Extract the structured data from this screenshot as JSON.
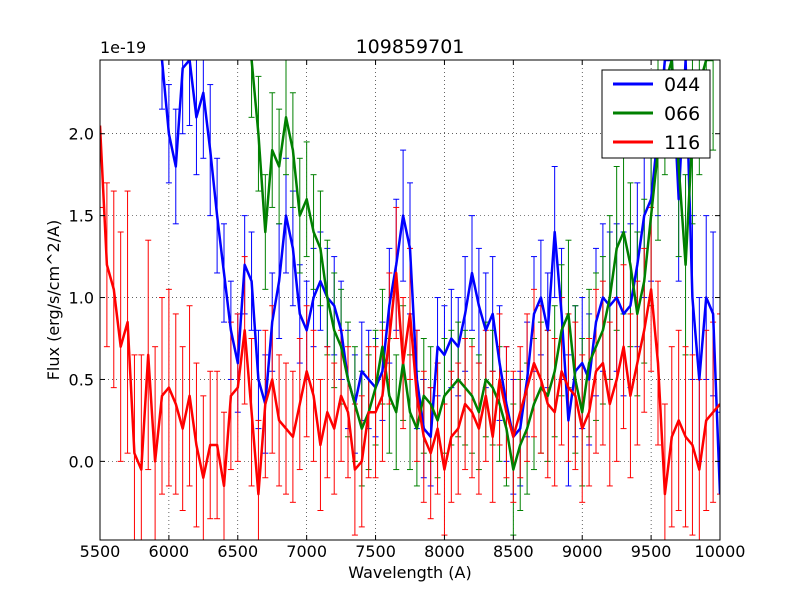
{
  "chart_data": {
    "type": "line",
    "title": "109859701",
    "xlabel": "Wavelength (A)",
    "ylabel": "Flux (erg/s/cm^2/A)",
    "offset_label": "1e-19",
    "xlim": [
      5500,
      10000
    ],
    "ylim": [
      -0.48,
      2.45
    ],
    "xticks": [
      5500,
      6000,
      6500,
      7000,
      7500,
      8000,
      8500,
      9000,
      9500,
      10000
    ],
    "xtick_labels": [
      "5500",
      "6000",
      "6500",
      "7000",
      "7500",
      "8000",
      "8500",
      "9000",
      "9500",
      "10000"
    ],
    "yticks": [
      0.0,
      0.5,
      1.0,
      1.5,
      2.0
    ],
    "ytick_labels": [
      "0.0",
      "0.5",
      "1.0",
      "1.5",
      "2.0"
    ],
    "grid": true,
    "legend_position": "top-right",
    "series": [
      {
        "name": "044",
        "color": "#0000ff",
        "x": [
          5950,
          6000,
          6050,
          6100,
          6150,
          6200,
          6250,
          6300,
          6350,
          6400,
          6450,
          6500,
          6550,
          6600,
          6650,
          6700,
          6750,
          6800,
          6850,
          6900,
          6950,
          7000,
          7050,
          7100,
          7150,
          7200,
          7250,
          7300,
          7350,
          7400,
          7450,
          7500,
          7550,
          7600,
          7650,
          7700,
          7750,
          7800,
          7850,
          7900,
          7950,
          8000,
          8050,
          8100,
          8150,
          8200,
          8250,
          8300,
          8350,
          8400,
          8450,
          8500,
          8550,
          8600,
          8650,
          8700,
          8750,
          8800,
          8850,
          8900,
          8950,
          9000,
          9050,
          9100,
          9150,
          9200,
          9250,
          9300,
          9350,
          9400,
          9450,
          9500,
          9550,
          9600,
          9650,
          9700,
          9750,
          9800,
          9850,
          9900,
          9950,
          10000
        ],
        "values": [
          2.45,
          2.0,
          1.8,
          2.4,
          2.45,
          2.1,
          2.25,
          1.9,
          1.5,
          1.15,
          0.8,
          0.6,
          1.2,
          1.1,
          0.5,
          0.35,
          0.85,
          1.1,
          1.5,
          1.3,
          0.9,
          0.8,
          1.0,
          1.1,
          1.0,
          0.95,
          0.8,
          0.5,
          0.35,
          0.55,
          0.5,
          0.45,
          0.55,
          0.95,
          1.2,
          1.5,
          1.3,
          0.5,
          0.2,
          0.15,
          0.7,
          0.65,
          0.75,
          0.7,
          0.9,
          1.15,
          0.95,
          0.8,
          0.9,
          0.6,
          0.35,
          0.15,
          0.2,
          0.5,
          0.9,
          1.0,
          0.8,
          1.4,
          0.9,
          0.25,
          0.55,
          0.6,
          0.5,
          0.85,
          1.0,
          0.95,
          1.0,
          0.9,
          0.95,
          1.2,
          1.5,
          1.6,
          2.0,
          2.45,
          2.45,
          1.6,
          2.45,
          1.0,
          0.5,
          1.0,
          0.9,
          -0.2
        ],
        "errors": [
          0.3,
          0.3,
          0.35,
          0.4,
          0.4,
          0.35,
          0.4,
          0.4,
          0.35,
          0.3,
          0.3,
          0.3,
          0.3,
          0.3,
          0.3,
          0.3,
          0.3,
          0.35,
          0.35,
          0.35,
          0.3,
          0.3,
          0.3,
          0.3,
          0.3,
          0.3,
          0.3,
          0.3,
          0.3,
          0.3,
          0.3,
          0.3,
          0.3,
          0.35,
          0.4,
          0.4,
          0.4,
          0.3,
          0.3,
          0.3,
          0.3,
          0.3,
          0.3,
          0.3,
          0.35,
          0.35,
          0.35,
          0.35,
          0.35,
          0.35,
          0.35,
          0.35,
          0.35,
          0.35,
          0.35,
          0.35,
          0.35,
          0.4,
          0.4,
          0.4,
          0.4,
          0.4,
          0.4,
          0.45,
          0.45,
          0.45,
          0.45,
          0.5,
          0.5,
          0.5,
          0.5,
          0.5,
          0.5,
          0.5,
          0.5,
          0.5,
          0.5,
          0.5,
          0.5,
          0.5,
          0.5,
          0.5
        ]
      },
      {
        "name": "066",
        "color": "#008000",
        "x": [
          6600,
          6650,
          6700,
          6750,
          6800,
          6850,
          6900,
          6950,
          7000,
          7050,
          7100,
          7150,
          7200,
          7250,
          7300,
          7350,
          7400,
          7450,
          7500,
          7550,
          7600,
          7650,
          7700,
          7750,
          7800,
          7850,
          7900,
          7950,
          8000,
          8050,
          8100,
          8150,
          8200,
          8250,
          8300,
          8350,
          8400,
          8450,
          8500,
          8550,
          8600,
          8650,
          8700,
          8750,
          8800,
          8850,
          8900,
          8950,
          9000,
          9050,
          9100,
          9150,
          9200,
          9250,
          9300,
          9350,
          9400,
          9450,
          9500,
          9550,
          9600,
          9650,
          9700,
          9750,
          9800,
          9850,
          9900,
          9950
        ],
        "values": [
          2.45,
          2.0,
          1.4,
          1.9,
          1.8,
          2.1,
          1.9,
          1.5,
          1.6,
          1.4,
          1.3,
          1.0,
          0.8,
          0.7,
          0.5,
          0.35,
          0.2,
          0.3,
          0.45,
          0.7,
          0.4,
          0.3,
          0.6,
          0.3,
          0.2,
          0.4,
          0.35,
          0.25,
          0.4,
          0.45,
          0.5,
          0.45,
          0.4,
          0.3,
          0.5,
          0.45,
          0.35,
          0.2,
          -0.05,
          0.1,
          0.2,
          0.35,
          0.45,
          0.4,
          0.55,
          0.8,
          0.9,
          0.5,
          0.3,
          0.6,
          0.7,
          0.8,
          1.0,
          1.3,
          1.4,
          1.2,
          0.9,
          1.1,
          1.5,
          1.9,
          2.3,
          2.45,
          1.8,
          1.2,
          2.0,
          2.3,
          2.45,
          2.45
        ],
        "errors": [
          0.35,
          0.35,
          0.35,
          0.35,
          0.35,
          0.35,
          0.35,
          0.35,
          0.35,
          0.35,
          0.35,
          0.35,
          0.35,
          0.35,
          0.35,
          0.35,
          0.35,
          0.35,
          0.35,
          0.35,
          0.35,
          0.35,
          0.35,
          0.35,
          0.35,
          0.35,
          0.35,
          0.35,
          0.35,
          0.35,
          0.35,
          0.35,
          0.35,
          0.35,
          0.35,
          0.35,
          0.35,
          0.35,
          0.4,
          0.4,
          0.4,
          0.4,
          0.4,
          0.4,
          0.4,
          0.4,
          0.45,
          0.45,
          0.45,
          0.45,
          0.45,
          0.45,
          0.5,
          0.5,
          0.5,
          0.5,
          0.5,
          0.5,
          0.55,
          0.55,
          0.55,
          0.55,
          0.55,
          0.55,
          0.55,
          0.55,
          0.55,
          0.55
        ]
      },
      {
        "name": "116",
        "color": "#ff0000",
        "x": [
          5500,
          5550,
          5600,
          5650,
          5700,
          5750,
          5800,
          5850,
          5900,
          5950,
          6000,
          6050,
          6100,
          6150,
          6200,
          6250,
          6300,
          6350,
          6400,
          6450,
          6500,
          6550,
          6600,
          6650,
          6700,
          6750,
          6800,
          6850,
          6900,
          6950,
          7000,
          7050,
          7100,
          7150,
          7200,
          7250,
          7300,
          7350,
          7400,
          7450,
          7500,
          7550,
          7600,
          7650,
          7700,
          7750,
          7800,
          7850,
          7900,
          7950,
          8000,
          8050,
          8100,
          8150,
          8200,
          8250,
          8300,
          8350,
          8400,
          8450,
          8500,
          8550,
          8600,
          8650,
          8700,
          8750,
          8800,
          8850,
          8900,
          8950,
          9000,
          9050,
          9100,
          9150,
          9200,
          9250,
          9300,
          9350,
          9400,
          9450,
          9500,
          9550,
          9600,
          9650,
          9700,
          9750,
          9800,
          9850,
          9900,
          9950,
          10000
        ],
        "values": [
          2.05,
          1.2,
          1.05,
          0.7,
          0.85,
          0.05,
          -0.05,
          0.65,
          0.0,
          0.4,
          0.45,
          0.35,
          0.2,
          0.4,
          0.1,
          -0.1,
          0.1,
          0.1,
          -0.15,
          0.4,
          0.45,
          0.8,
          0.3,
          -0.2,
          0.35,
          0.5,
          0.25,
          0.2,
          0.15,
          0.35,
          0.55,
          0.4,
          0.1,
          0.3,
          0.2,
          0.4,
          0.3,
          -0.05,
          0.0,
          0.3,
          0.3,
          0.4,
          0.75,
          1.15,
          0.6,
          0.9,
          0.4,
          0.15,
          0.05,
          0.2,
          -0.05,
          0.15,
          0.2,
          0.35,
          0.3,
          0.2,
          0.4,
          0.15,
          0.5,
          0.3,
          0.15,
          0.3,
          0.45,
          0.6,
          0.5,
          0.35,
          0.3,
          0.55,
          0.45,
          0.4,
          0.2,
          0.3,
          0.55,
          0.6,
          0.35,
          0.5,
          0.7,
          0.4,
          0.6,
          0.8,
          1.05,
          0.6,
          -0.2,
          0.15,
          0.25,
          0.15,
          0.1,
          -0.05,
          0.25,
          0.3,
          0.35
        ],
        "errors": [
          0.5,
          0.5,
          0.6,
          0.7,
          0.8,
          0.6,
          0.7,
          0.7,
          0.7,
          0.6,
          0.6,
          0.55,
          0.5,
          0.55,
          0.5,
          0.5,
          0.45,
          0.45,
          0.45,
          0.45,
          0.45,
          0.45,
          0.45,
          0.45,
          0.45,
          0.45,
          0.4,
          0.4,
          0.4,
          0.4,
          0.4,
          0.4,
          0.4,
          0.4,
          0.4,
          0.4,
          0.4,
          0.4,
          0.4,
          0.4,
          0.4,
          0.4,
          0.4,
          0.4,
          0.4,
          0.4,
          0.4,
          0.4,
          0.4,
          0.4,
          0.4,
          0.4,
          0.4,
          0.4,
          0.4,
          0.4,
          0.4,
          0.4,
          0.4,
          0.4,
          0.4,
          0.4,
          0.45,
          0.45,
          0.45,
          0.45,
          0.45,
          0.45,
          0.45,
          0.45,
          0.45,
          0.45,
          0.5,
          0.5,
          0.5,
          0.5,
          0.5,
          0.5,
          0.5,
          0.5,
          0.5,
          0.5,
          0.55,
          0.55,
          0.55,
          0.55,
          0.55,
          0.55,
          0.55,
          0.55,
          0.55
        ]
      }
    ]
  }
}
